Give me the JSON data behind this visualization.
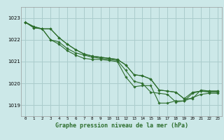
{
  "title": "Graphe pression niveau de la mer (hPa)",
  "background_color": "#cce8e8",
  "grid_color": "#aacccc",
  "line_color": "#2d6e2d",
  "marker_color": "#2d6e2d",
  "xlim": [
    -0.5,
    23.5
  ],
  "ylim": [
    1018.5,
    1023.5
  ],
  "yticks": [
    1019,
    1020,
    1021,
    1022,
    1023
  ],
  "xticks": [
    0,
    1,
    2,
    3,
    4,
    5,
    6,
    7,
    8,
    9,
    10,
    11,
    12,
    13,
    14,
    15,
    16,
    17,
    18,
    19,
    20,
    21,
    22,
    23
  ],
  "series": [
    [
      1022.8,
      1022.6,
      1022.5,
      1022.0,
      1021.8,
      1021.5,
      1021.3,
      1021.15,
      1021.1,
      1021.1,
      1021.05,
      1021.0,
      1020.3,
      1019.85,
      1019.9,
      1019.9,
      1019.1,
      1019.1,
      1019.2,
      1019.2,
      1019.55,
      1019.65,
      1019.6,
      1019.6
    ],
    [
      1022.8,
      1022.6,
      1022.5,
      1022.0,
      1021.9,
      1021.6,
      1021.4,
      1021.3,
      1021.2,
      1021.15,
      1021.1,
      1021.05,
      1020.6,
      1020.1,
      1020.0,
      1019.6,
      1019.55,
      1019.5,
      1019.15,
      1019.2,
      1019.35,
      1019.5,
      1019.55,
      1019.55
    ],
    [
      1022.8,
      1022.55,
      1022.5,
      1022.5,
      1022.1,
      1021.8,
      1021.55,
      1021.35,
      1021.25,
      1021.2,
      1021.15,
      1021.1,
      1020.85,
      1020.4,
      1020.35,
      1020.2,
      1019.7,
      1019.65,
      1019.6,
      1019.3,
      1019.3,
      1019.7,
      1019.65,
      1019.65
    ],
    [
      1022.8,
      1022.55,
      1022.5,
      1022.5,
      1022.1,
      1021.8,
      1021.55,
      1021.35,
      1021.25,
      1021.2,
      1021.15,
      1021.1,
      1020.85,
      1020.4,
      1020.35,
      1020.2,
      1019.7,
      1019.65,
      1019.6,
      1019.3,
      1019.6,
      1019.65,
      1019.65,
      1019.65
    ]
  ]
}
